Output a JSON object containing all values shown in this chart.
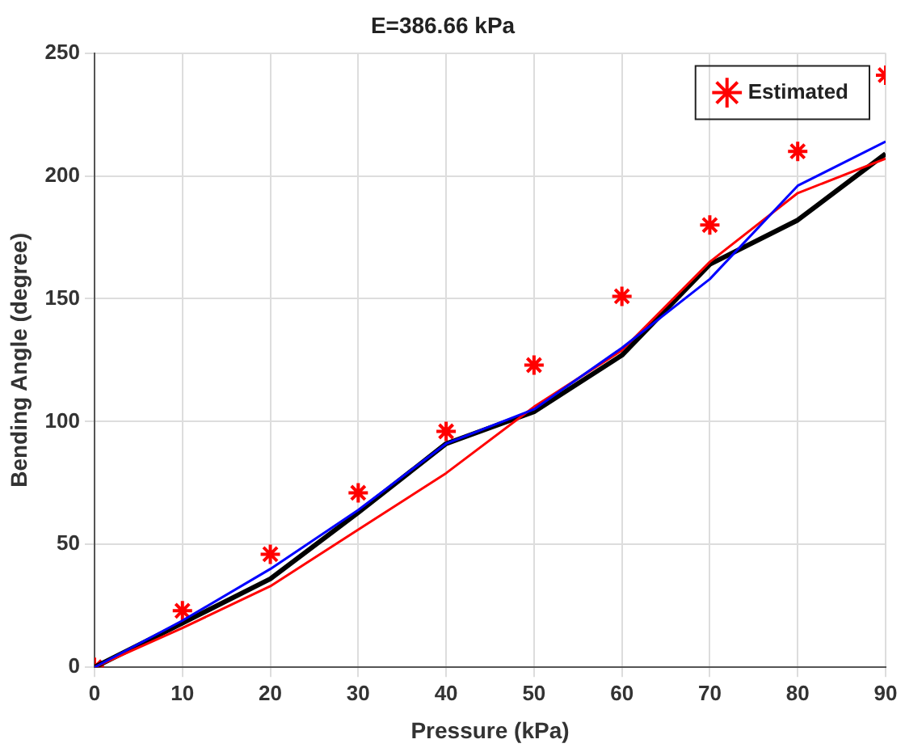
{
  "chart_data": {
    "type": "line",
    "title": "E=386.66 kPa",
    "xlabel": "Pressure (kPa)",
    "ylabel": "Bending Angle (degree)",
    "x": [
      0,
      10,
      20,
      30,
      40,
      50,
      60,
      70,
      80,
      90
    ],
    "xlim": [
      0,
      90
    ],
    "xticks": [
      0,
      10,
      20,
      30,
      40,
      50,
      60,
      70,
      80,
      90
    ],
    "ylim": [
      0,
      250
    ],
    "yticks": [
      0,
      50,
      100,
      150,
      200,
      250
    ],
    "grid": true,
    "legend": "top right",
    "marker": "none",
    "line_style": "solid",
    "series": [
      {
        "color": "#0000ff",
        "values": [
          0,
          19,
          40,
          64,
          91,
          105,
          130,
          158,
          196,
          214
        ]
      },
      {
        "color": "#ff0000",
        "values": [
          0,
          16,
          33,
          56,
          79,
          106,
          129,
          165,
          193,
          207
        ]
      },
      {
        "color": "#000000",
        "values": [
          0,
          18,
          36,
          63,
          91,
          104,
          127,
          164,
          182,
          209
        ]
      },
      {
        "name": "Estimated",
        "type": "scatter",
        "marker": "cross",
        "color": "#ff0000",
        "values": [
          0,
          23,
          46,
          71,
          96,
          123,
          151,
          180,
          210,
          241
        ]
      }
    ]
  }
}
